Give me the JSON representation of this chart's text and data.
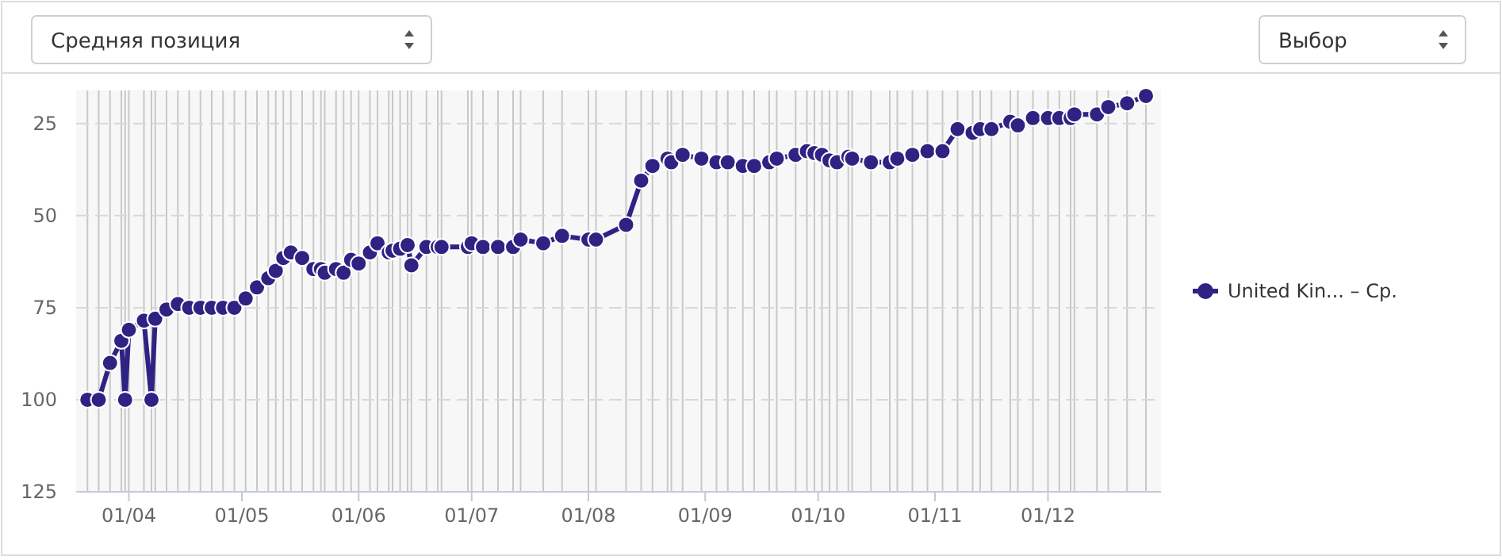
{
  "chart_data": {
    "type": "line",
    "annotations": [
      "Средняя позиция",
      "Выбор"
    ],
    "x": [
      "--03-21",
      "--03-24",
      "--03-27",
      "--03-30",
      "--03-31",
      "--04-01",
      "--04-05",
      "--04-07",
      "--04-08",
      "--04-11",
      "--04-14",
      "--04-17",
      "--04-20",
      "--04-23",
      "--04-26",
      "--04-29",
      "--05-02",
      "--05-05",
      "--05-08",
      "--05-10",
      "--05-12",
      "--05-14",
      "--05-17",
      "--05-20",
      "--05-22",
      "--05-23",
      "--05-26",
      "--05-28",
      "--05-30",
      "--06-01",
      "--06-04",
      "--06-06",
      "--06-09",
      "--06-10",
      "--06-12",
      "--06-14",
      "--06-15",
      "--06-19",
      "--06-22",
      "--06-23",
      "--06-30",
      "--07-01",
      "--07-04",
      "--07-08",
      "--07-12",
      "--07-14",
      "--07-20",
      "--07-25",
      "--08-01",
      "--08-03",
      "--08-11",
      "--08-15",
      "--08-18",
      "--08-22",
      "--08-23",
      "--08-26",
      "--08-31",
      "--09-04",
      "--09-07",
      "--09-11",
      "--09-14",
      "--09-18",
      "--09-20",
      "--09-25",
      "--09-28",
      "--09-30",
      "--10-02",
      "--10-04",
      "--10-06",
      "--10-09",
      "--10-10",
      "--10-15",
      "--10-20",
      "--10-22",
      "--10-26",
      "--10-30",
      "--11-03",
      "--11-07",
      "--11-11",
      "--11-13",
      "--11-16",
      "--11-21",
      "--11-23",
      "--11-27",
      "--12-01",
      "--12-04",
      "--12-07",
      "--12-08",
      "--12-14",
      "--12-17",
      "--12-22",
      "--12-27"
    ],
    "series": [
      {
        "name": "United Kin... – Ср.",
        "color": "#2e2383",
        "values": [
          100,
          100,
          90,
          84,
          100,
          81,
          78.5,
          100,
          78,
          75.5,
          74,
          75,
          75,
          75,
          75,
          75,
          72.5,
          69.5,
          67,
          65,
          61.5,
          60,
          61.5,
          64.5,
          64.5,
          65.5,
          64.5,
          65.5,
          62,
          63,
          60,
          57.5,
          60,
          59.5,
          59,
          58,
          63.5,
          58.5,
          58.5,
          58.5,
          58.5,
          57.5,
          58.5,
          58.5,
          58.5,
          56.5,
          57.5,
          55.5,
          56.5,
          56.5,
          52.5,
          40.5,
          36.5,
          34.5,
          35.5,
          33.5,
          34.5,
          35.5,
          35.5,
          36.5,
          36.5,
          35.5,
          34.5,
          33.5,
          32.5,
          33,
          33.5,
          35,
          35.5,
          34,
          34.5,
          35.5,
          35.5,
          34.5,
          33.5,
          32.5,
          32.5,
          26.5,
          27.5,
          26.5,
          26.5,
          24.5,
          25.5,
          23.5,
          23.5,
          23.5,
          23.5,
          22.5,
          22.5,
          20.5,
          19.5,
          17.5
        ]
      }
    ],
    "xlim": [
      "--03-18",
      "--12-31"
    ],
    "xticks": [
      {
        "value": "--04-01",
        "label": "01/04"
      },
      {
        "value": "--05-01",
        "label": "01/05"
      },
      {
        "value": "--06-01",
        "label": "01/06"
      },
      {
        "value": "--07-01",
        "label": "01/07"
      },
      {
        "value": "--08-01",
        "label": "01/08"
      },
      {
        "value": "--09-01",
        "label": "01/09"
      },
      {
        "value": "--10-01",
        "label": "01/10"
      },
      {
        "value": "--11-01",
        "label": "01/11"
      },
      {
        "value": "--12-01",
        "label": "01/12"
      }
    ],
    "ylim": [
      125,
      16
    ],
    "yticks": [
      25,
      50,
      75,
      100,
      125
    ],
    "grid": true,
    "legend": "right",
    "marker": "circle",
    "line_style": "solid"
  }
}
